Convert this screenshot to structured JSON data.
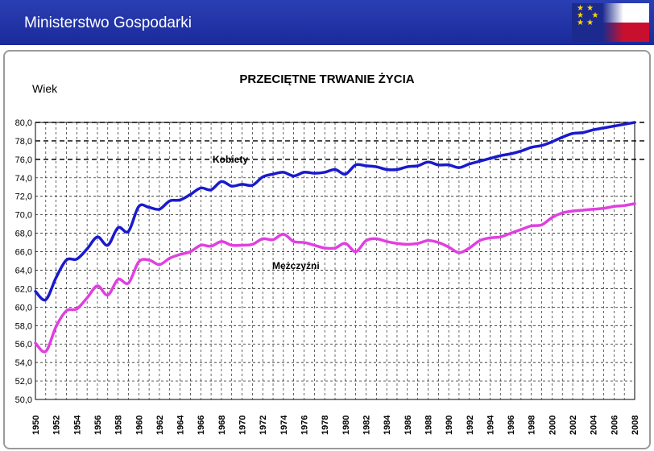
{
  "header": {
    "title": "Ministerstwo Gospodarki",
    "logo_icon": "eu-poland-flag-icon"
  },
  "chart_data": {
    "type": "line",
    "title": "PRZECIĘTNE TRWANIE ŻYCIA",
    "ylabel": "Wiek",
    "xlabel": "",
    "ylim": [
      50,
      80
    ],
    "xlim": [
      1950,
      2008
    ],
    "grid": true,
    "y_ticks": [
      "50,0",
      "52,0",
      "54,0",
      "56,0",
      "58,0",
      "60,0",
      "62,0",
      "64,0",
      "66,0",
      "68,0",
      "70,0",
      "72,0",
      "74,0",
      "76,0",
      "78,0",
      "80,0"
    ],
    "x_ticks": [
      "1950",
      "1952",
      "1954",
      "1956",
      "1958",
      "1960",
      "1962",
      "1964",
      "1966",
      "1968",
      "1970",
      "1972",
      "1974",
      "1976",
      "1978",
      "1980",
      "1982",
      "1984",
      "1986",
      "1988",
      "1990",
      "1992",
      "1994",
      "1996",
      "1998",
      "2000",
      "2002",
      "2004",
      "2006",
      "2008"
    ],
    "x": [
      1950,
      1951,
      1952,
      1953,
      1954,
      1955,
      1956,
      1957,
      1958,
      1959,
      1960,
      1961,
      1962,
      1963,
      1964,
      1965,
      1966,
      1967,
      1968,
      1969,
      1970,
      1971,
      1972,
      1973,
      1974,
      1975,
      1976,
      1977,
      1978,
      1979,
      1980,
      1981,
      1982,
      1983,
      1984,
      1985,
      1986,
      1987,
      1988,
      1989,
      1990,
      1991,
      1992,
      1993,
      1994,
      1995,
      1996,
      1997,
      1998,
      1999,
      2000,
      2001,
      2002,
      2003,
      2004,
      2005,
      2006,
      2007,
      2008
    ],
    "series": [
      {
        "name": "Kobiety",
        "color": "#1a1acd",
        "values": [
          61.7,
          60.8,
          63.2,
          65.1,
          65.2,
          66.3,
          67.6,
          66.7,
          68.6,
          68.2,
          70.9,
          70.8,
          70.6,
          71.5,
          71.6,
          72.2,
          72.9,
          72.7,
          73.6,
          73.1,
          73.3,
          73.2,
          74.1,
          74.4,
          74.6,
          74.2,
          74.6,
          74.5,
          74.6,
          74.9,
          74.4,
          75.4,
          75.3,
          75.2,
          74.9,
          74.9,
          75.2,
          75.3,
          75.7,
          75.4,
          75.4,
          75.1,
          75.5,
          75.8,
          76.1,
          76.4,
          76.6,
          76.9,
          77.3,
          77.5,
          77.9,
          78.4,
          78.8,
          78.9,
          79.2,
          79.4,
          79.6,
          79.8,
          80.0
        ]
      },
      {
        "name": "Mężczyźni",
        "color": "#e040e0",
        "values": [
          56.1,
          55.2,
          57.9,
          59.6,
          59.8,
          61.0,
          62.3,
          61.3,
          63.0,
          62.6,
          64.9,
          65.1,
          64.6,
          65.3,
          65.7,
          66.0,
          66.7,
          66.6,
          67.1,
          66.7,
          66.7,
          66.8,
          67.4,
          67.3,
          67.9,
          67.1,
          67.0,
          66.7,
          66.4,
          66.4,
          66.9,
          66.0,
          67.2,
          67.4,
          67.1,
          66.9,
          66.8,
          66.9,
          67.2,
          67.0,
          66.5,
          65.9,
          66.4,
          67.2,
          67.5,
          67.6,
          68.0,
          68.4,
          68.8,
          68.9,
          69.7,
          70.2,
          70.4,
          70.5,
          70.6,
          70.7,
          70.9,
          71.0,
          71.2
        ]
      }
    ],
    "reference_lines_y": [
      76,
      78,
      80
    ]
  }
}
